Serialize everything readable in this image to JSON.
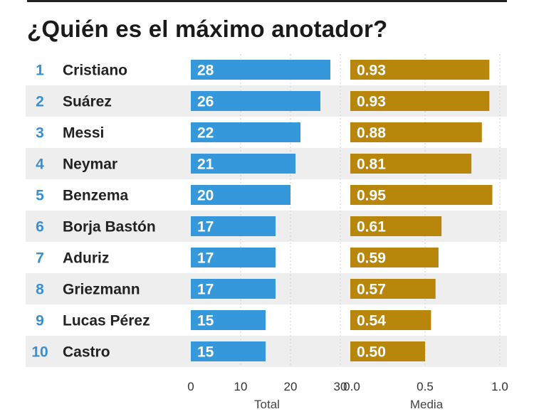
{
  "title": "¿Quién es el máximo anotador?",
  "chart_data": {
    "type": "bar",
    "orientation": "horizontal",
    "title": "¿Quién es el máximo anotador?",
    "ranks": [
      "1",
      "2",
      "3",
      "4",
      "5",
      "6",
      "7",
      "8",
      "9",
      "10"
    ],
    "categories": [
      "Cristiano",
      "Suárez",
      "Messi",
      "Neymar",
      "Benzema",
      "Borja Bastón",
      "Aduriz",
      "Griezmann",
      "Lucas Pérez",
      "Castro"
    ],
    "series": [
      {
        "name": "Total",
        "values": [
          28,
          26,
          22,
          21,
          20,
          17,
          17,
          17,
          15,
          15
        ],
        "labels": [
          "28",
          "26",
          "22",
          "21",
          "20",
          "17",
          "17",
          "17",
          "15",
          "15"
        ],
        "xlim": [
          0,
          30
        ],
        "ticks": [
          0,
          10,
          20,
          30
        ],
        "tick_labels": [
          "0",
          "10",
          "20",
          "30"
        ],
        "color": "#3498db"
      },
      {
        "name": "Media",
        "values": [
          0.93,
          0.93,
          0.88,
          0.81,
          0.95,
          0.61,
          0.59,
          0.57,
          0.54,
          0.5
        ],
        "labels": [
          "0.93",
          "0.93",
          "0.88",
          "0.81",
          "0.95",
          "0.61",
          "0.59",
          "0.57",
          "0.54",
          "0.50"
        ],
        "xlim": [
          0,
          1.0
        ],
        "ticks": [
          0,
          0.5,
          1.0
        ],
        "tick_labels": [
          "0.0",
          "0.5",
          "1.0"
        ],
        "color": "#b8860b"
      }
    ],
    "colors": {
      "rank": "#3a8fd0",
      "row_stripe": "#eeeeee",
      "grid": "#d0d0d0"
    }
  }
}
